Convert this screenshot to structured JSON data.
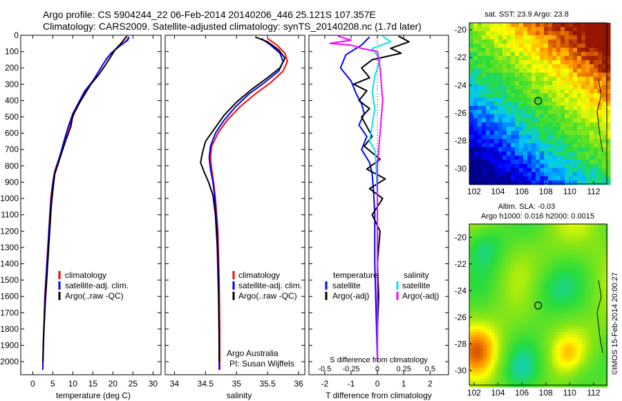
{
  "title": {
    "line1": "Argo profile: CS 5904244_22 06-Feb-2014 20140206_446 25.121S 107.357E",
    "line2": "Climatology: CARS2009. Satellite-adjusted climatology: synTS_20140208.nc (1.7d later)"
  },
  "colors": {
    "climatology": "#ff0000",
    "satellite": "#0000ff",
    "argo": "#000000",
    "sal_satellite": "#00e5ee",
    "sal_argo": "#ff00ff"
  },
  "chart_data": [
    {
      "id": "temperature",
      "type": "line",
      "xlabel": "temperature (deg C)",
      "ylabel": "depth",
      "xlim": [
        -3,
        32
      ],
      "ylim": [
        2080,
        0
      ],
      "xticks": [
        0,
        5,
        10,
        15,
        20,
        25,
        30
      ],
      "yticks": [
        0,
        100,
        200,
        300,
        400,
        500,
        600,
        700,
        800,
        900,
        1000,
        1100,
        1200,
        1300,
        1400,
        1500,
        1600,
        1700,
        1800,
        1900,
        2000
      ],
      "legend": [
        "climatology",
        "satellite-adj. clim.",
        "Argo(..raw -QC)"
      ],
      "series": [
        {
          "name": "climatology",
          "color": "#ff0000",
          "points": [
            [
              24,
              10
            ],
            [
              23.5,
              30
            ],
            [
              22,
              60
            ],
            [
              20,
              100
            ],
            [
              18.5,
              140
            ],
            [
              17,
              200
            ],
            [
              15.5,
              260
            ],
            [
              13.5,
              330
            ],
            [
              12,
              400
            ],
            [
              10.5,
              470
            ],
            [
              9.5,
              530
            ],
            [
              8.5,
              600
            ],
            [
              7.5,
              680
            ],
            [
              6.5,
              760
            ],
            [
              5.5,
              830
            ],
            [
              5,
              900
            ],
            [
              4.5,
              1000
            ],
            [
              4,
              1200
            ],
            [
              3.5,
              1400
            ],
            [
              3,
              1600
            ],
            [
              2.8,
              1800
            ],
            [
              2.5,
              2050
            ]
          ]
        },
        {
          "name": "satellite-adj. clim.",
          "color": "#0000ff",
          "points": [
            [
              24,
              10
            ],
            [
              23.7,
              30
            ],
            [
              21.5,
              70
            ],
            [
              19.5,
              110
            ],
            [
              18,
              160
            ],
            [
              16.5,
              220
            ],
            [
              15,
              280
            ],
            [
              13,
              340
            ],
            [
              11.5,
              410
            ],
            [
              10,
              480
            ],
            [
              9,
              550
            ],
            [
              8,
              630
            ],
            [
              7,
              720
            ],
            [
              6,
              800
            ],
            [
              5.3,
              860
            ],
            [
              4.8,
              950
            ],
            [
              4.3,
              1100
            ],
            [
              3.8,
              1300
            ],
            [
              3.3,
              1500
            ],
            [
              2.9,
              1700
            ],
            [
              2.6,
              1900
            ],
            [
              2.5,
              2050
            ]
          ]
        },
        {
          "name": "Argo(..raw -QC)",
          "color": "#000000",
          "points": [
            [
              23.5,
              5
            ],
            [
              23,
              20
            ],
            [
              22,
              50
            ],
            [
              20.5,
              90
            ],
            [
              19.5,
              130
            ],
            [
              18.2,
              180
            ],
            [
              16.5,
              240
            ],
            [
              14.5,
              300
            ],
            [
              13,
              360
            ],
            [
              11.5,
              420
            ],
            [
              10,
              490
            ],
            [
              9.5,
              560
            ],
            [
              8.3,
              640
            ],
            [
              7.2,
              720
            ],
            [
              6.3,
              790
            ],
            [
              5.5,
              850
            ],
            [
              5.1,
              930
            ],
            [
              4.6,
              1050
            ],
            [
              4.1,
              1250
            ],
            [
              3.6,
              1450
            ],
            [
              3.1,
              1650
            ],
            [
              2.7,
              1850
            ],
            [
              2.5,
              2000
            ]
          ]
        }
      ]
    },
    {
      "id": "salinity",
      "type": "line",
      "xlabel": "salinity",
      "ylabel": "depth",
      "xlim": [
        33.85,
        36.1
      ],
      "ylim": [
        2080,
        0
      ],
      "xticks": [
        34,
        34.5,
        35,
        35.5,
        36
      ],
      "legend": [
        "climatology",
        "satellite-adj. clim.",
        "Argo(..raw -QC)"
      ],
      "annotation": {
        "line1": "Argo Australia",
        "line2": "PI: Susan Wijffels"
      },
      "series": [
        {
          "name": "climatology",
          "color": "#ff0000",
          "points": [
            [
              35.5,
              20
            ],
            [
              35.65,
              60
            ],
            [
              35.78,
              110
            ],
            [
              35.82,
              160
            ],
            [
              35.75,
              220
            ],
            [
              35.55,
              290
            ],
            [
              35.3,
              360
            ],
            [
              35.05,
              440
            ],
            [
              34.85,
              520
            ],
            [
              34.7,
              600
            ],
            [
              34.6,
              680
            ],
            [
              34.58,
              750
            ],
            [
              34.6,
              820
            ],
            [
              34.63,
              900
            ],
            [
              34.66,
              1000
            ],
            [
              34.7,
              1200
            ],
            [
              34.72,
              1500
            ],
            [
              34.73,
              1800
            ],
            [
              34.73,
              2050
            ]
          ]
        },
        {
          "name": "satellite-adj. clim.",
          "color": "#0000ff",
          "points": [
            [
              35.4,
              20
            ],
            [
              35.55,
              60
            ],
            [
              35.7,
              110
            ],
            [
              35.75,
              160
            ],
            [
              35.68,
              220
            ],
            [
              35.45,
              290
            ],
            [
              35.2,
              360
            ],
            [
              34.98,
              440
            ],
            [
              34.8,
              520
            ],
            [
              34.66,
              600
            ],
            [
              34.58,
              680
            ],
            [
              34.56,
              750
            ],
            [
              34.58,
              820
            ],
            [
              34.62,
              900
            ],
            [
              34.65,
              1000
            ],
            [
              34.69,
              1200
            ],
            [
              34.71,
              1500
            ],
            [
              34.72,
              1800
            ],
            [
              34.72,
              2050
            ]
          ]
        },
        {
          "name": "Argo(..raw -QC)",
          "color": "#000000",
          "points": [
            [
              35.3,
              10
            ],
            [
              35.5,
              40
            ],
            [
              35.68,
              90
            ],
            [
              35.78,
              140
            ],
            [
              35.7,
              200
            ],
            [
              35.5,
              260
            ],
            [
              35.25,
              330
            ],
            [
              35.0,
              410
            ],
            [
              34.8,
              490
            ],
            [
              34.65,
              570
            ],
            [
              34.5,
              650
            ],
            [
              34.45,
              720
            ],
            [
              34.42,
              780
            ],
            [
              34.48,
              840
            ],
            [
              34.55,
              900
            ],
            [
              34.62,
              980
            ],
            [
              34.66,
              1100
            ],
            [
              34.69,
              1300
            ],
            [
              34.71,
              1600
            ],
            [
              34.72,
              1900
            ],
            [
              34.72,
              2000
            ]
          ]
        }
      ]
    },
    {
      "id": "difference",
      "type": "line",
      "xlabel": "T difference from climatology",
      "xlabel_top": "S difference from climatology",
      "xlim": [
        -2.6,
        2.7
      ],
      "ylim": [
        2080,
        0
      ],
      "xticks": [
        -2,
        -1,
        0,
        1,
        2
      ],
      "s_ticks": [
        "-0.5",
        "-0.25",
        "0",
        "0.25",
        "0.5"
      ],
      "legend_temperature": {
        "title": "temperature",
        "items": [
          "satellite",
          "Argo(-adj)"
        ]
      },
      "legend_salinity": {
        "title": "salinity",
        "items": [
          "satellite",
          "Argo(-adj)"
        ]
      },
      "series": [
        {
          "name": "temperature satellite",
          "color": "#0000ff",
          "points": [
            [
              -0.3,
              10
            ],
            [
              -0.6,
              60
            ],
            [
              -1.2,
              120
            ],
            [
              -1.4,
              200
            ],
            [
              -1.0,
              280
            ],
            [
              -0.8,
              360
            ],
            [
              -0.6,
              420
            ],
            [
              -0.5,
              480
            ],
            [
              -0.7,
              550
            ],
            [
              -0.4,
              620
            ],
            [
              -0.6,
              700
            ],
            [
              -0.3,
              780
            ],
            [
              -0.2,
              850
            ],
            [
              -0.15,
              950
            ],
            [
              -0.1,
              1100
            ],
            [
              -0.1,
              1400
            ],
            [
              -0.05,
              1700
            ],
            [
              0,
              2000
            ]
          ]
        },
        {
          "name": "temperature Argo(-adj)",
          "color": "#000000",
          "points": [
            [
              0.8,
              5
            ],
            [
              1.2,
              40
            ],
            [
              0.5,
              80
            ],
            [
              0.9,
              110
            ],
            [
              -0.2,
              150
            ],
            [
              -0.6,
              200
            ],
            [
              -0.3,
              260
            ],
            [
              -0.9,
              300
            ],
            [
              -0.4,
              340
            ],
            [
              -0.7,
              400
            ],
            [
              -0.3,
              450
            ],
            [
              -0.6,
              500
            ],
            [
              -0.4,
              560
            ],
            [
              -0.2,
              620
            ],
            [
              -0.5,
              680
            ],
            [
              0.1,
              760
            ],
            [
              -0.4,
              820
            ],
            [
              0.3,
              880
            ],
            [
              -0.3,
              940
            ],
            [
              0.2,
              1000
            ],
            [
              -0.2,
              1100
            ],
            [
              0.1,
              1200
            ],
            [
              0,
              1400
            ],
            [
              0.05,
              1600
            ],
            [
              0,
              1800
            ],
            [
              0,
              2000
            ]
          ]
        },
        {
          "name": "salinity satellite",
          "color": "#00e5ee",
          "points": [
            [
              0.2,
              5
            ],
            [
              0.5,
              40
            ],
            [
              -0.2,
              80
            ],
            [
              0.1,
              150
            ],
            [
              -0.1,
              250
            ],
            [
              -0.2,
              350
            ],
            [
              -0.1,
              450
            ],
            [
              -0.2,
              550
            ],
            [
              -0.3,
              650
            ],
            [
              -0.1,
              700
            ],
            [
              -0.05,
              800
            ],
            [
              0,
              1000
            ],
            [
              0,
              1500
            ],
            [
              0,
              2000
            ]
          ]
        },
        {
          "name": "salinity Argo(-adj)",
          "color": "#ff00ff",
          "points": [
            [
              -1.5,
              5
            ],
            [
              -1.0,
              30
            ],
            [
              -1.8,
              50
            ],
            [
              -1.0,
              60
            ],
            [
              -0.6,
              80
            ],
            [
              0,
              100
            ],
            [
              0.1,
              200
            ],
            [
              0.2,
              400
            ],
            [
              0.1,
              600
            ],
            [
              0,
              800
            ],
            [
              0,
              1200
            ],
            [
              0,
              2000
            ]
          ]
        }
      ]
    },
    {
      "id": "sst_map",
      "type": "heatmap",
      "title": "sat. SST: 23.9 Argo: 23.8",
      "xlim": [
        101.6,
        113.1
      ],
      "ylim": [
        -31.1,
        -19.5
      ],
      "xticks": [
        102,
        104,
        106,
        108,
        110,
        112
      ],
      "yticks": [
        -20,
        -22,
        -24,
        -26,
        -28,
        -30
      ],
      "marker": {
        "lon": 107.357,
        "lat": -25.121
      }
    },
    {
      "id": "sla_map",
      "type": "heatmap",
      "title_line1": "Altim. SLA: -0.03",
      "title_line2": "Argo h1000: 0.016 h2000: 0.0015",
      "watermark": "©IMOS 15-Feb-2014 20:00:27",
      "xlim": [
        101.6,
        113.1
      ],
      "ylim": [
        -31.1,
        -19.0
      ],
      "xticks": [
        102,
        104,
        106,
        108,
        110,
        112
      ],
      "yticks": [
        -20,
        -22,
        -24,
        -26,
        -28,
        -30
      ],
      "marker": {
        "lon": 107.357,
        "lat": -25.121
      }
    }
  ]
}
